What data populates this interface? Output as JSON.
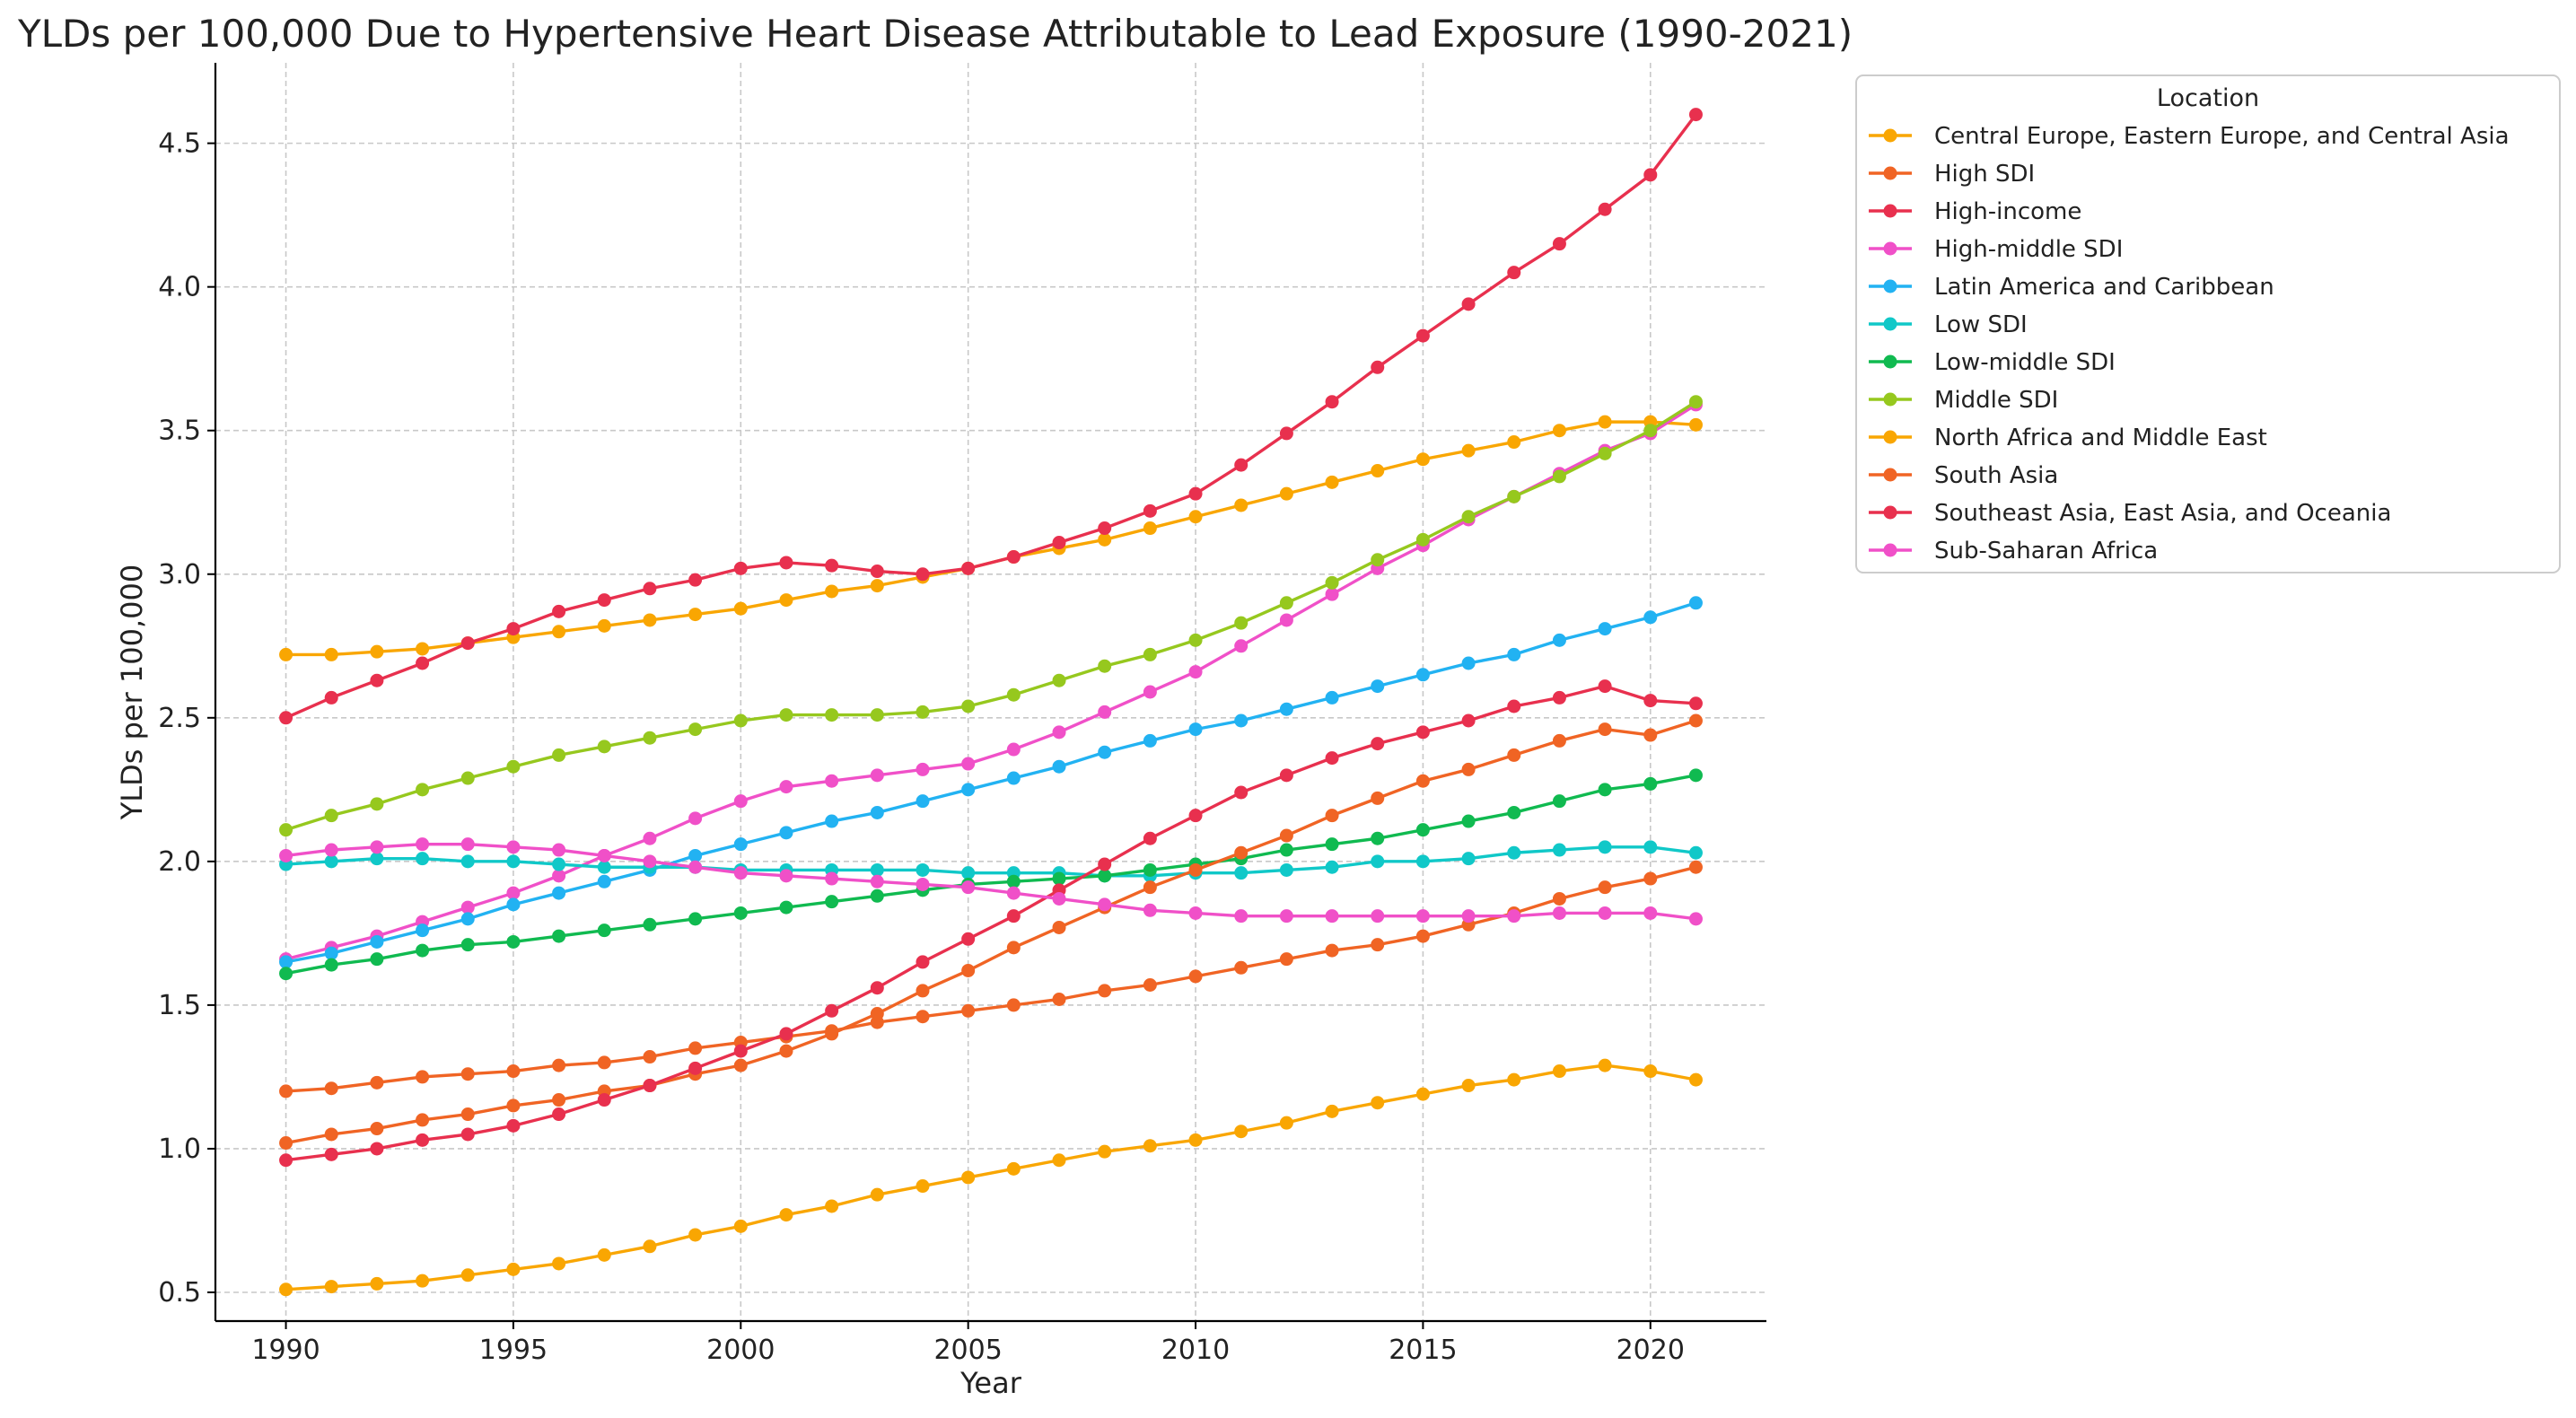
{
  "chart_data": {
    "type": "line",
    "title": "YLDs per 100,000 Due to Hypertensive Heart Disease Attributable to Lead Exposure (1990-2021)",
    "xlabel": "Year",
    "ylabel": "YLDs per 100,000",
    "xlim": [
      1988.45,
      2022.55
    ],
    "ylim": [
      0.4,
      4.78
    ],
    "xticks": [
      1990,
      1995,
      2000,
      2005,
      2010,
      2015,
      2020
    ],
    "yticks": [
      0.5,
      1.0,
      1.5,
      2.0,
      2.5,
      3.0,
      3.5,
      4.0,
      4.5
    ],
    "ytick_labels": [
      "0.5",
      "1.0",
      "1.5",
      "2.0",
      "2.5",
      "3.0",
      "3.5",
      "4.0",
      "4.5"
    ],
    "grid": true,
    "legend_title": "Location",
    "legend_position": "outside-upper-right",
    "x": [
      1990,
      1991,
      1992,
      1993,
      1994,
      1995,
      1996,
      1997,
      1998,
      1999,
      2000,
      2001,
      2002,
      2003,
      2004,
      2005,
      2006,
      2007,
      2008,
      2009,
      2010,
      2011,
      2012,
      2013,
      2014,
      2015,
      2016,
      2017,
      2018,
      2019,
      2020,
      2021
    ],
    "series": [
      {
        "name": "Central Europe, Eastern Europe, and Central Asia",
        "color": "#F9A602",
        "values": [
          2.72,
          2.72,
          2.73,
          2.74,
          2.76,
          2.78,
          2.8,
          2.82,
          2.84,
          2.86,
          2.88,
          2.91,
          2.94,
          2.96,
          2.99,
          3.02,
          3.06,
          3.09,
          3.12,
          3.16,
          3.2,
          3.24,
          3.28,
          3.32,
          3.36,
          3.4,
          3.43,
          3.46,
          3.5,
          3.53,
          3.53,
          3.52
        ]
      },
      {
        "name": "High SDI",
        "color": "#F06424",
        "values": [
          1.2,
          1.21,
          1.23,
          1.25,
          1.26,
          1.27,
          1.29,
          1.3,
          1.32,
          1.35,
          1.37,
          1.39,
          1.41,
          1.44,
          1.46,
          1.48,
          1.5,
          1.52,
          1.55,
          1.57,
          1.6,
          1.63,
          1.66,
          1.69,
          1.71,
          1.74,
          1.78,
          1.82,
          1.87,
          1.91,
          1.94,
          1.98
        ]
      },
      {
        "name": "High-income",
        "color": "#E8304E",
        "values": [
          2.5,
          2.57,
          2.63,
          2.69,
          2.76,
          2.81,
          2.87,
          2.91,
          2.95,
          2.98,
          3.02,
          3.04,
          3.03,
          3.01,
          3.0,
          3.02,
          3.06,
          3.11,
          3.16,
          3.22,
          3.28,
          3.38,
          3.49,
          3.6,
          3.72,
          3.83,
          3.94,
          4.05,
          4.15,
          4.27,
          4.39,
          4.6
        ]
      },
      {
        "name": "High-middle SDI",
        "color": "#F050C8",
        "values": [
          1.66,
          1.7,
          1.74,
          1.79,
          1.84,
          1.89,
          1.95,
          2.02,
          2.08,
          2.15,
          2.21,
          2.26,
          2.28,
          2.3,
          2.32,
          2.34,
          2.39,
          2.45,
          2.52,
          2.59,
          2.66,
          2.75,
          2.84,
          2.93,
          3.02,
          3.1,
          3.19,
          3.27,
          3.35,
          3.43,
          3.49,
          3.59
        ]
      },
      {
        "name": "Latin America and Caribbean",
        "color": "#22B2F2",
        "values": [
          1.65,
          1.68,
          1.72,
          1.76,
          1.8,
          1.85,
          1.89,
          1.93,
          1.97,
          2.02,
          2.06,
          2.1,
          2.14,
          2.17,
          2.21,
          2.25,
          2.29,
          2.33,
          2.38,
          2.42,
          2.46,
          2.49,
          2.53,
          2.57,
          2.61,
          2.65,
          2.69,
          2.72,
          2.77,
          2.81,
          2.85,
          2.9
        ]
      },
      {
        "name": "Low SDI",
        "color": "#10C8C8",
        "values": [
          1.99,
          2.0,
          2.01,
          2.01,
          2.0,
          2.0,
          1.99,
          1.98,
          1.98,
          1.98,
          1.97,
          1.97,
          1.97,
          1.97,
          1.97,
          1.96,
          1.96,
          1.96,
          1.95,
          1.95,
          1.96,
          1.96,
          1.97,
          1.98,
          2.0,
          2.0,
          2.01,
          2.03,
          2.04,
          2.05,
          2.05,
          2.03
        ]
      },
      {
        "name": "Low-middle SDI",
        "color": "#10BA50",
        "values": [
          1.61,
          1.64,
          1.66,
          1.69,
          1.71,
          1.72,
          1.74,
          1.76,
          1.78,
          1.8,
          1.82,
          1.84,
          1.86,
          1.88,
          1.9,
          1.92,
          1.93,
          1.94,
          1.95,
          1.97,
          1.99,
          2.01,
          2.04,
          2.06,
          2.08,
          2.11,
          2.14,
          2.17,
          2.21,
          2.25,
          2.27,
          2.3
        ]
      },
      {
        "name": "Middle SDI",
        "color": "#96C81E",
        "values": [
          2.11,
          2.16,
          2.2,
          2.25,
          2.29,
          2.33,
          2.37,
          2.4,
          2.43,
          2.46,
          2.49,
          2.51,
          2.51,
          2.51,
          2.52,
          2.54,
          2.58,
          2.63,
          2.68,
          2.72,
          2.77,
          2.83,
          2.9,
          2.97,
          3.05,
          3.12,
          3.2,
          3.27,
          3.34,
          3.42,
          3.5,
          3.6
        ]
      },
      {
        "name": "North Africa and Middle East",
        "color": "#F9A602",
        "values": [
          0.51,
          0.52,
          0.53,
          0.54,
          0.56,
          0.58,
          0.6,
          0.63,
          0.66,
          0.7,
          0.73,
          0.77,
          0.8,
          0.84,
          0.87,
          0.9,
          0.93,
          0.96,
          0.99,
          1.01,
          1.03,
          1.06,
          1.09,
          1.13,
          1.16,
          1.19,
          1.22,
          1.24,
          1.27,
          1.29,
          1.27,
          1.24
        ]
      },
      {
        "name": "South Asia",
        "color": "#F06424",
        "values": [
          1.02,
          1.05,
          1.07,
          1.1,
          1.12,
          1.15,
          1.17,
          1.2,
          1.22,
          1.26,
          1.29,
          1.34,
          1.4,
          1.47,
          1.55,
          1.62,
          1.7,
          1.77,
          1.84,
          1.91,
          1.97,
          2.03,
          2.09,
          2.16,
          2.22,
          2.28,
          2.32,
          2.37,
          2.42,
          2.46,
          2.44,
          2.49
        ]
      },
      {
        "name": "Southeast Asia, East Asia, and Oceania",
        "color": "#E8304E",
        "values": [
          0.96,
          0.98,
          1.0,
          1.03,
          1.05,
          1.08,
          1.12,
          1.17,
          1.22,
          1.28,
          1.34,
          1.4,
          1.48,
          1.56,
          1.65,
          1.73,
          1.81,
          1.9,
          1.99,
          2.08,
          2.16,
          2.24,
          2.3,
          2.36,
          2.41,
          2.45,
          2.49,
          2.54,
          2.57,
          2.61,
          2.56,
          2.55
        ]
      },
      {
        "name": "Sub-Saharan Africa",
        "color": "#F050C8",
        "values": [
          2.02,
          2.04,
          2.05,
          2.06,
          2.06,
          2.05,
          2.04,
          2.02,
          2.0,
          1.98,
          1.96,
          1.95,
          1.94,
          1.93,
          1.92,
          1.91,
          1.89,
          1.87,
          1.85,
          1.83,
          1.82,
          1.81,
          1.81,
          1.81,
          1.81,
          1.81,
          1.81,
          1.81,
          1.82,
          1.82,
          1.82,
          1.8
        ]
      }
    ]
  }
}
